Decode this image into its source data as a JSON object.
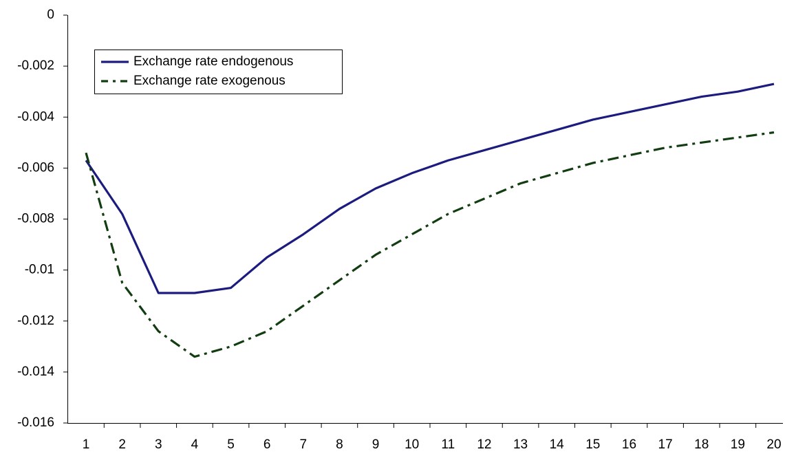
{
  "chart_data": {
    "type": "line",
    "categories": [
      1,
      2,
      3,
      4,
      5,
      6,
      7,
      8,
      9,
      10,
      11,
      12,
      13,
      14,
      15,
      16,
      17,
      18,
      19,
      20
    ],
    "series": [
      {
        "name": "Exchange rate endogenous",
        "color": "#1c1c7e",
        "linestyle": "solid",
        "values": [
          -0.0057,
          -0.0078,
          -0.0109,
          -0.0109,
          -0.0107,
          -0.0095,
          -0.0086,
          -0.0076,
          -0.0068,
          -0.0062,
          -0.0057,
          -0.0053,
          -0.0049,
          -0.0045,
          -0.0041,
          -0.0038,
          -0.0035,
          -0.0032,
          -0.003,
          -0.0027
        ]
      },
      {
        "name": "Exchange rate exogenous",
        "color": "#113d11",
        "linestyle": "dashdot",
        "values": [
          -0.0054,
          -0.0105,
          -0.0124,
          -0.0134,
          -0.013,
          -0.0124,
          -0.0114,
          -0.0104,
          -0.0094,
          -0.0086,
          -0.0078,
          -0.0072,
          -0.0066,
          -0.0062,
          -0.0058,
          -0.0055,
          -0.0052,
          -0.005,
          -0.0048,
          -0.0046
        ]
      }
    ],
    "ylim": [
      -0.016,
      0
    ],
    "yticks": [
      0,
      -0.002,
      -0.004,
      -0.006,
      -0.008,
      -0.01,
      -0.012,
      -0.014,
      -0.016
    ],
    "grid": false,
    "legend": "upper left"
  }
}
